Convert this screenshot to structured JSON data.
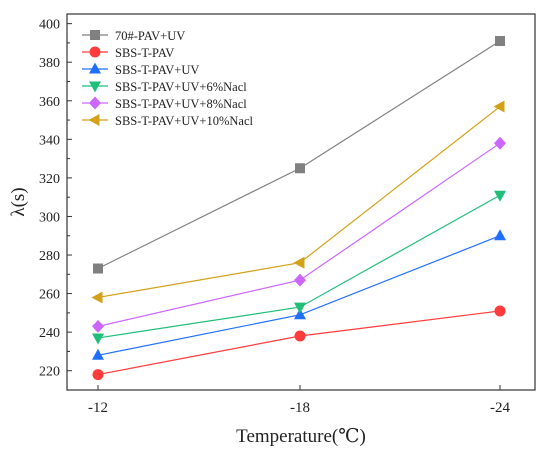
{
  "chart_data": {
    "type": "line",
    "title": "",
    "xlabel": "Temperature(℃)",
    "ylabel": "λ(s)",
    "categories": [
      "-12",
      "-18",
      "-24"
    ],
    "ylim": [
      210,
      405
    ],
    "y_ticks": [
      220,
      240,
      260,
      280,
      300,
      320,
      340,
      360,
      380,
      400
    ],
    "grid": false,
    "legend_position": "top-left",
    "series": [
      {
        "name": "70#-PAV+UV",
        "values": [
          273,
          325,
          391
        ],
        "color": "#808080",
        "marker": "square"
      },
      {
        "name": "SBS-T-PAV",
        "values": [
          218,
          238,
          251
        ],
        "color": "#ff3b3b",
        "marker": "circle"
      },
      {
        "name": "SBS-T-PAV+UV",
        "values": [
          228,
          249,
          290
        ],
        "color": "#1f6fff",
        "marker": "triangle-up"
      },
      {
        "name": "SBS-T-PAV+UV+6%Nacl",
        "values": [
          237,
          253,
          311
        ],
        "color": "#1fbf7a",
        "marker": "triangle-down"
      },
      {
        "name": "SBS-T-PAV+UV+8%Nacl",
        "values": [
          243,
          267,
          338
        ],
        "color": "#cc66ff",
        "marker": "diamond"
      },
      {
        "name": "SBS-T-PAV+UV+10%Nacl",
        "values": [
          258,
          276,
          357
        ],
        "color": "#d4a017",
        "marker": "triangle-left"
      }
    ]
  }
}
